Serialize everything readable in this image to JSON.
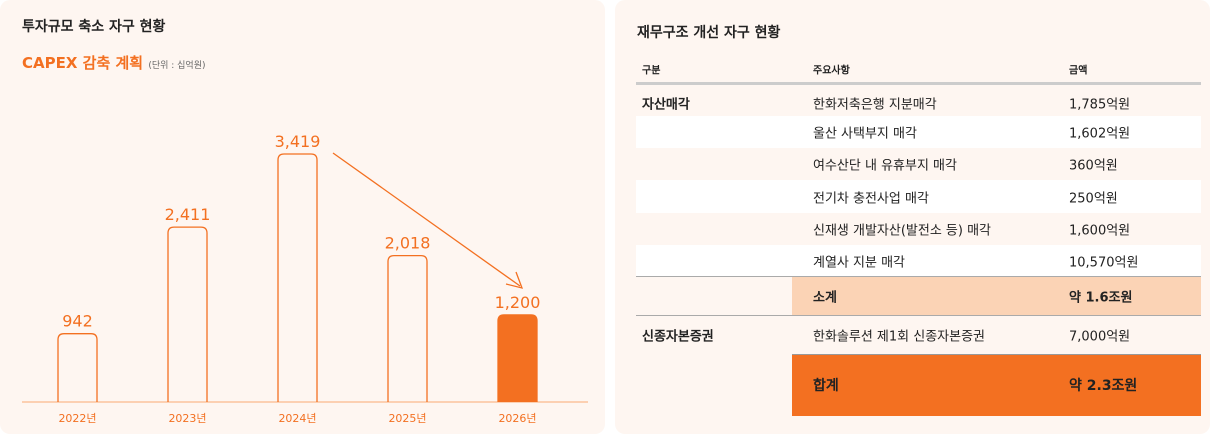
{
  "left": {
    "title": "투자규모 축소 자구 현황",
    "subtitle": "CAPEX 감축 계획",
    "unit": "(단위 : 십억원)"
  },
  "chart_data": {
    "type": "bar",
    "categories": [
      "2022년",
      "2023년",
      "2024년",
      "2025년",
      "2026년"
    ],
    "values": [
      942,
      2411,
      3419,
      2018,
      1200
    ],
    "labels": [
      "942",
      "2,411",
      "3,419",
      "2,018",
      "1,200"
    ],
    "highlight_index": 4,
    "accent": "#f37021",
    "annotation": "arrow from 2024 to 2026 (decrease)"
  },
  "right": {
    "title": "재무구조 개선 자구 현황",
    "headers": [
      "구분",
      "주요사항",
      "금액"
    ],
    "rows": [
      {
        "cat": "자산매각",
        "item": "한화저축은행 지분매각",
        "amount": "1,785억원"
      },
      {
        "cat": "",
        "item": "울산 사택부지 매각",
        "amount": "1,602억원"
      },
      {
        "cat": "",
        "item": "여수산단 내 유휴부지 매각",
        "amount": "360억원"
      },
      {
        "cat": "",
        "item": "전기차 충전사업 매각",
        "amount": "250억원"
      },
      {
        "cat": "",
        "item": "신재생 개발자산(발전소 등) 매각",
        "amount": "1,600억원"
      },
      {
        "cat": "",
        "item": "계열사 지분 매각",
        "amount": "10,570억원"
      }
    ],
    "subtotal": {
      "label": "소계",
      "amount": "약 1.6조원"
    },
    "bond": {
      "cat": "신종자본증권",
      "item": "한화솔루션 제1회 신종자본증권",
      "amount": "7,000억원"
    },
    "total": {
      "label": "합계",
      "amount": "약 2.3조원"
    },
    "colors": {
      "subtotal": "#fbd3b5",
      "total": "#f37021"
    }
  }
}
